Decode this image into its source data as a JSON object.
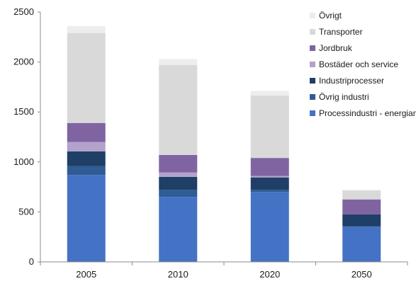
{
  "chart_data": {
    "type": "bar",
    "stacked": true,
    "categories": [
      "2005",
      "2010",
      "2020",
      "2050"
    ],
    "ylim": [
      0,
      2500
    ],
    "yticks": [
      0,
      500,
      1000,
      1500,
      2000,
      2500
    ],
    "grid": false,
    "legend_position": "top-right",
    "series": [
      {
        "name": "Processindustri - energianv",
        "color": "#4472C4",
        "values": [
          870,
          650,
          700,
          355
        ]
      },
      {
        "name": "Övrig industri",
        "color": "#2F5C94",
        "values": [
          90,
          70,
          20,
          0
        ]
      },
      {
        "name": "Industriprocesser",
        "color": "#1F3F66",
        "values": [
          145,
          130,
          125,
          120
        ]
      },
      {
        "name": "Bostäder och service",
        "color": "#B3A2CC",
        "values": [
          95,
          45,
          15,
          0
        ]
      },
      {
        "name": "Jordbruk",
        "color": "#8064A2",
        "values": [
          190,
          175,
          180,
          150
        ]
      },
      {
        "name": "Transporter",
        "color": "#D9D9D9",
        "values": [
          900,
          900,
          625,
          90
        ]
      },
      {
        "name": "Övrigt",
        "color": "#EDEDED",
        "values": [
          70,
          60,
          45,
          5
        ]
      }
    ]
  }
}
